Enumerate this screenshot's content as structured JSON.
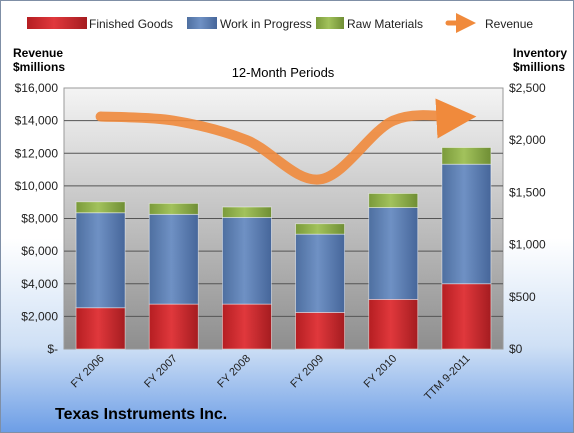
{
  "chart_data": {
    "type": "bar",
    "subtitle": "12-Month Periods",
    "categories": [
      "FY 2006",
      "FY 2007",
      "FY 2008",
      "FY 2009",
      "FY 2010",
      "TTM 9-2011"
    ],
    "stacked": true,
    "series": [
      {
        "name": "Finished Goods",
        "axis": "right",
        "color": "#c8262a",
        "values": [
          395,
          430,
          430,
          350,
          475,
          625
        ]
      },
      {
        "name": "Work in Progress",
        "axis": "right",
        "color": "#5b7fb4",
        "values": [
          910,
          860,
          830,
          750,
          880,
          1145
        ]
      },
      {
        "name": "Raw Materials",
        "axis": "right",
        "color": "#8aaa46",
        "values": [
          105,
          105,
          100,
          100,
          135,
          160
        ]
      }
    ],
    "line_series": {
      "name": "Revenue",
      "axis": "left",
      "color": "#f08a3c",
      "values": [
        14250,
        14000,
        12800,
        10400,
        14000,
        14200
      ]
    },
    "left_axis": {
      "label_line1": "Revenue",
      "label_line2": "$millions",
      "range": [
        0,
        16000
      ],
      "ticks": [
        0,
        2000,
        4000,
        6000,
        8000,
        10000,
        12000,
        14000,
        16000
      ],
      "tick_labels": [
        "$-",
        "$2,000",
        "$4,000",
        "$6,000",
        "$8,000",
        "$10,000",
        "$12,000",
        "$14,000",
        "$16,000"
      ]
    },
    "right_axis": {
      "label_line1": "Inventory",
      "label_line2": "$millions",
      "range": [
        0,
        2500
      ],
      "ticks": [
        0,
        500,
        1000,
        1500,
        2000,
        2500
      ],
      "tick_labels": [
        "$0",
        "$500",
        "$1,000",
        "$1,500",
        "$2,000",
        "$2,500"
      ]
    },
    "grid": true,
    "legend_placement": "top"
  },
  "company": "Texas Instruments Inc."
}
